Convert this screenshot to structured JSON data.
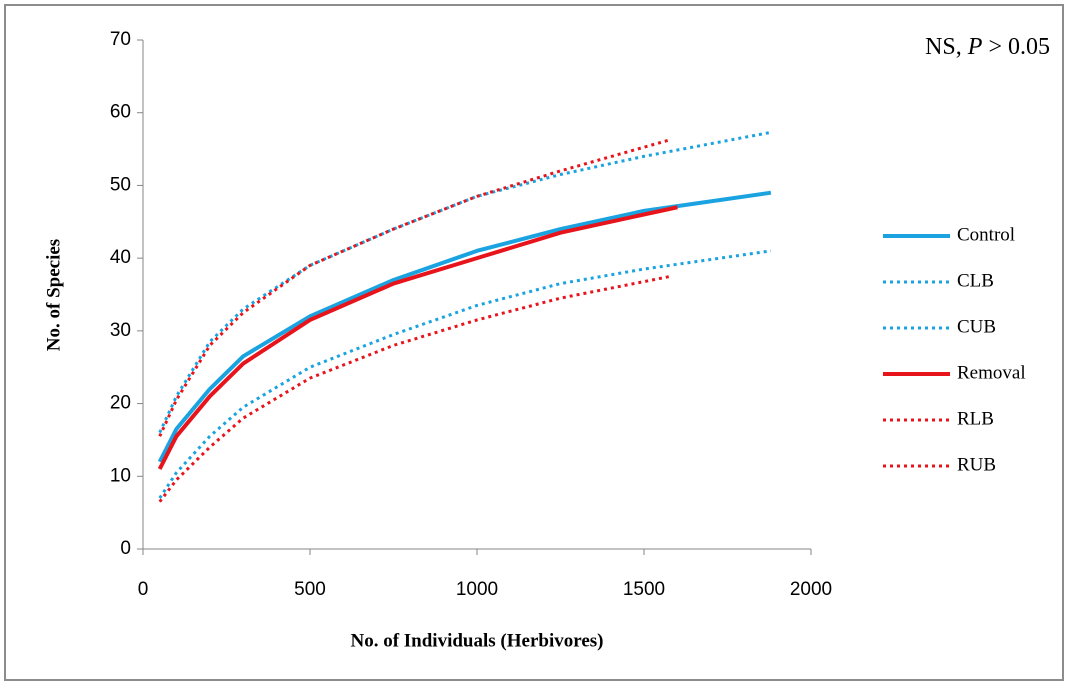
{
  "chart_data": {
    "type": "line",
    "annotation": [
      "NS,",
      "P",
      "> 0.05"
    ],
    "xlabel": "No. of Individuals (Herbivores)",
    "ylabel": "No. of Species",
    "xlim": [
      0,
      2000
    ],
    "xticks": [
      0,
      500,
      1000,
      1500,
      2000
    ],
    "ylim": [
      0,
      70
    ],
    "yticks": [
      0,
      10,
      20,
      30,
      40,
      50,
      60,
      70
    ],
    "legend": "right",
    "series": [
      {
        "name": "Control",
        "color": "#1aa3e0",
        "style": "solid",
        "x": [
          50,
          100,
          200,
          300,
          500,
          750,
          1000,
          1250,
          1500,
          1880
        ],
        "values": [
          12,
          16.5,
          22,
          26.5,
          32,
          37,
          41,
          44,
          46.5,
          49
        ]
      },
      {
        "name": "CLB",
        "color": "#1aa3e0",
        "style": "dotted",
        "x": [
          50,
          100,
          200,
          300,
          500,
          750,
          1000,
          1250,
          1500,
          1880
        ],
        "values": [
          7,
          10.5,
          15.5,
          19.5,
          25,
          29.5,
          33.5,
          36.5,
          38.5,
          41
        ]
      },
      {
        "name": "CUB",
        "color": "#1aa3e0",
        "style": "dotted",
        "x": [
          50,
          100,
          200,
          300,
          500,
          750,
          1000,
          1250,
          1500,
          1880
        ],
        "values": [
          16,
          21,
          28.5,
          33,
          39,
          44,
          48.5,
          51.5,
          54,
          57.3
        ]
      },
      {
        "name": "Removal",
        "color": "#e8141c",
        "style": "solid",
        "x": [
          50,
          100,
          200,
          300,
          500,
          750,
          1000,
          1250,
          1600
        ],
        "values": [
          11,
          15.5,
          21,
          25.5,
          31.5,
          36.5,
          40,
          43.5,
          47
        ]
      },
      {
        "name": "RLB",
        "color": "#e8141c",
        "style": "dotted",
        "x": [
          50,
          100,
          200,
          300,
          500,
          750,
          1000,
          1250,
          1580
        ],
        "values": [
          6.5,
          9.5,
          14,
          18,
          23.5,
          28,
          31.5,
          34.5,
          37.5
        ]
      },
      {
        "name": "RUB",
        "color": "#e8141c",
        "style": "dotted",
        "x": [
          50,
          100,
          200,
          300,
          500,
          750,
          1000,
          1250,
          1580
        ],
        "values": [
          15.5,
          20.5,
          28,
          32.5,
          39,
          44,
          48.5,
          52,
          56.3
        ]
      }
    ]
  }
}
